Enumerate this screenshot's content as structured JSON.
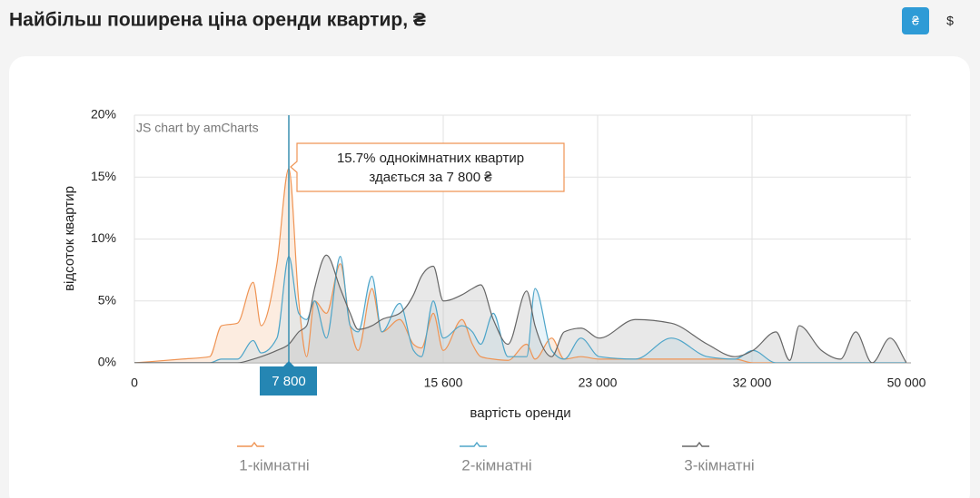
{
  "header": {
    "title": "Найбільш поширена ціна оренди квартир, ₴",
    "buttons": [
      "₴",
      "$"
    ]
  },
  "chart_data": {
    "type": "line",
    "y_label": "відсоток квартир",
    "x_label": "вартість оренди",
    "watermark": "JS chart by amCharts",
    "x": [
      0,
      2400,
      3800,
      4400,
      5200,
      6000,
      6400,
      7200,
      7800,
      8300,
      8700,
      9100,
      9700,
      10400,
      10900,
      11300,
      12000,
      12500,
      13400,
      14100,
      14500,
      15100,
      15600,
      16500,
      17000,
      17400,
      18000,
      18700,
      19600,
      20000,
      20800,
      21400,
      22200,
      23100,
      25200,
      27300,
      29400,
      31000,
      32100,
      34800,
      36400,
      37500,
      40100,
      42300,
      44100,
      46000,
      48100,
      50000
    ],
    "xlim": [
      0,
      50000
    ],
    "xticks": [
      0,
      {
        "value": 7800,
        "label": "7 800"
      },
      {
        "value": 15600,
        "label": "15 600"
      },
      {
        "value": 23000,
        "label": "23 000"
      },
      {
        "value": 32000,
        "label": "32 000"
      },
      {
        "value": 50000,
        "label": "50 000"
      }
    ],
    "ylim": [
      0,
      20
    ],
    "yticks": [
      {
        "value": 0,
        "label": "0%"
      },
      {
        "value": 5,
        "label": "5%"
      },
      {
        "value": 10,
        "label": "10%"
      },
      {
        "value": 15,
        "label": "15%"
      },
      {
        "value": 20,
        "label": "20%"
      }
    ],
    "grid": true,
    "legend": "bottom",
    "cursor": {
      "value": 7800,
      "label": "7 800"
    },
    "tooltip": {
      "lines": [
        "15.7% однокімнатних квартир",
        "здається за 7 800 ₴"
      ]
    },
    "series": [
      {
        "name": "1-кімнатні",
        "color": "#ef9454",
        "fill": "#f7c9a6",
        "values": [
          0,
          0.3,
          0.5,
          3,
          3.2,
          6.5,
          3,
          8,
          15.7,
          5,
          0.5,
          5,
          4,
          8,
          3,
          1,
          6,
          2.5,
          3.5,
          1.5,
          1.2,
          4,
          1,
          3.5,
          1.5,
          0.5,
          0.3,
          0.2,
          1.5,
          0.3,
          2,
          0.3,
          0.5,
          0.3,
          0.3,
          0.3,
          0.3,
          0.3,
          0,
          0,
          0,
          0,
          0,
          0,
          0,
          0,
          0,
          0
        ]
      },
      {
        "name": "2-кімнатні",
        "color": "#4ea5c9",
        "fill": "#bfe0ee",
        "values": [
          0,
          0,
          0,
          0.3,
          0.3,
          1.8,
          0.8,
          2,
          8.6,
          4,
          3.5,
          5,
          2,
          8.6,
          3,
          2.5,
          7,
          2.5,
          4.8,
          1,
          0.5,
          5,
          2,
          3,
          2.5,
          1.5,
          4,
          0.5,
          0.5,
          6,
          1,
          0.3,
          2,
          0.5,
          0.3,
          2,
          0.5,
          0.3,
          1,
          0,
          0,
          0,
          0,
          0,
          0,
          0,
          0,
          0
        ]
      },
      {
        "name": "3-кімнатні",
        "color": "#666666",
        "fill": "#bdbdbd",
        "values": [
          0,
          0,
          0,
          0,
          0,
          0.3,
          0.5,
          1,
          1.5,
          2.5,
          3,
          6,
          8.7,
          6,
          4,
          2.7,
          3,
          3.5,
          4,
          5.5,
          7,
          7.8,
          5,
          5.5,
          6,
          6.3,
          3.5,
          1.5,
          5.8,
          3,
          0.5,
          2.5,
          2.8,
          2,
          3.5,
          3.2,
          1.5,
          0.5,
          1,
          2.5,
          0.2,
          3,
          1,
          0.3,
          2.5,
          0,
          2,
          0
        ]
      }
    ]
  }
}
